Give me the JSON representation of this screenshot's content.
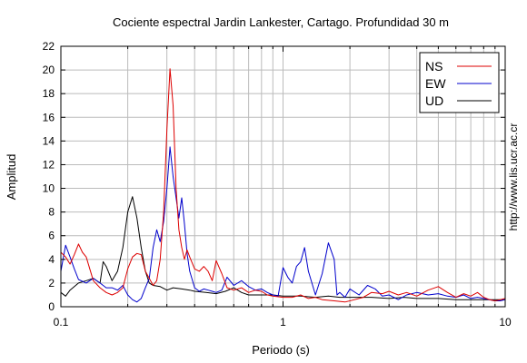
{
  "chart_data": {
    "type": "line",
    "title": "Cociente espectral Jardin Lankester, Cartago. Profundidad 30 m",
    "xlabel": "Periodo (s)",
    "ylabel": "Amplitud",
    "xscale": "log",
    "xlim": [
      0.1,
      10
    ],
    "ylim": [
      0,
      22
    ],
    "xticks": [
      "0.1",
      "1",
      "10"
    ],
    "yticks": [
      "0",
      "2",
      "4",
      "6",
      "8",
      "10",
      "12",
      "14",
      "16",
      "18",
      "20",
      "22"
    ],
    "grid": true,
    "legend_position": "top-right",
    "credit": "http://www.lis.ucr.ac.cr",
    "series": [
      {
        "name": "NS",
        "color": "#dd0000",
        "x": [
          0.1,
          0.105,
          0.11,
          0.115,
          0.12,
          0.125,
          0.13,
          0.14,
          0.15,
          0.16,
          0.17,
          0.18,
          0.19,
          0.2,
          0.21,
          0.22,
          0.23,
          0.24,
          0.25,
          0.26,
          0.27,
          0.28,
          0.29,
          0.3,
          0.31,
          0.32,
          0.33,
          0.34,
          0.35,
          0.36,
          0.37,
          0.38,
          0.4,
          0.42,
          0.44,
          0.46,
          0.48,
          0.5,
          0.53,
          0.56,
          0.6,
          0.65,
          0.7,
          0.75,
          0.8,
          0.85,
          0.9,
          1.0,
          1.1,
          1.2,
          1.3,
          1.4,
          1.5,
          1.7,
          1.9,
          2.1,
          2.3,
          2.5,
          2.8,
          3.0,
          3.3,
          3.6,
          4.0,
          4.5,
          5.0,
          5.5,
          6.0,
          6.5,
          7.0,
          7.5,
          8.0,
          8.5,
          9.0,
          9.5,
          10.0
        ],
        "values": [
          4.6,
          4.2,
          3.6,
          4.4,
          5.3,
          4.6,
          4.2,
          2.2,
          1.6,
          1.2,
          1.0,
          1.2,
          1.6,
          3.2,
          4.2,
          4.5,
          4.4,
          3.0,
          2.4,
          1.8,
          2.2,
          4.0,
          8.0,
          15.0,
          20.1,
          17.0,
          10.0,
          6.5,
          5.0,
          4.0,
          4.8,
          4.2,
          3.2,
          3.0,
          3.4,
          3.0,
          2.2,
          3.9,
          2.8,
          1.6,
          1.4,
          1.6,
          1.2,
          1.4,
          1.3,
          1.0,
          0.9,
          0.8,
          0.8,
          1.0,
          0.7,
          0.8,
          0.6,
          0.5,
          0.4,
          0.6,
          0.8,
          1.2,
          1.1,
          1.3,
          1.0,
          1.2,
          0.9,
          1.4,
          1.7,
          1.2,
          0.8,
          1.1,
          0.9,
          1.2,
          0.8,
          0.6,
          0.5,
          0.6,
          0.7
        ]
      },
      {
        "name": "EW",
        "color": "#0000cc",
        "x": [
          0.1,
          0.105,
          0.11,
          0.115,
          0.12,
          0.13,
          0.14,
          0.15,
          0.16,
          0.17,
          0.18,
          0.19,
          0.2,
          0.21,
          0.22,
          0.23,
          0.24,
          0.25,
          0.26,
          0.27,
          0.28,
          0.29,
          0.3,
          0.31,
          0.32,
          0.33,
          0.34,
          0.35,
          0.36,
          0.37,
          0.38,
          0.4,
          0.42,
          0.44,
          0.46,
          0.48,
          0.5,
          0.53,
          0.56,
          0.6,
          0.65,
          0.7,
          0.75,
          0.8,
          0.85,
          0.9,
          0.95,
          1.0,
          1.05,
          1.1,
          1.15,
          1.2,
          1.25,
          1.3,
          1.4,
          1.5,
          1.6,
          1.7,
          1.75,
          1.8,
          1.9,
          2.0,
          2.2,
          2.4,
          2.6,
          2.8,
          3.0,
          3.3,
          3.6,
          4.0,
          4.5,
          5.0,
          5.5,
          6.0,
          6.5,
          7.0,
          7.5,
          8.0,
          8.5,
          9.0,
          9.5,
          10.0
        ],
        "values": [
          3.0,
          5.2,
          4.2,
          3.2,
          2.3,
          2.0,
          2.4,
          2.0,
          1.6,
          1.6,
          1.4,
          1.8,
          1.0,
          0.6,
          0.4,
          0.7,
          1.6,
          2.4,
          5.0,
          6.5,
          5.5,
          7.2,
          10.0,
          13.5,
          11.0,
          9.2,
          7.5,
          9.2,
          7.0,
          4.5,
          3.0,
          1.6,
          1.3,
          1.5,
          1.4,
          1.3,
          1.2,
          1.4,
          2.5,
          1.8,
          2.2,
          1.7,
          1.4,
          1.5,
          1.2,
          1.0,
          0.9,
          3.3,
          2.5,
          2.0,
          3.4,
          3.8,
          5.0,
          3.0,
          1.0,
          2.8,
          5.4,
          4.0,
          1.0,
          1.2,
          0.8,
          1.5,
          1.0,
          1.8,
          1.5,
          0.9,
          1.0,
          0.6,
          1.0,
          1.2,
          1.0,
          1.1,
          0.9,
          0.8,
          1.0,
          0.7,
          0.8,
          0.7,
          0.6,
          0.5,
          0.5,
          0.6
        ]
      },
      {
        "name": "UD",
        "color": "#000000",
        "x": [
          0.1,
          0.105,
          0.11,
          0.12,
          0.13,
          0.14,
          0.15,
          0.155,
          0.16,
          0.17,
          0.18,
          0.19,
          0.2,
          0.21,
          0.22,
          0.23,
          0.24,
          0.25,
          0.26,
          0.28,
          0.3,
          0.32,
          0.35,
          0.38,
          0.4,
          0.45,
          0.5,
          0.55,
          0.6,
          0.65,
          0.7,
          0.8,
          0.9,
          1.0,
          1.2,
          1.4,
          1.6,
          1.8,
          2.0,
          2.5,
          3.0,
          3.5,
          4.0,
          5.0,
          6.0,
          7.0,
          8.0,
          9.0,
          10.0
        ],
        "values": [
          1.2,
          0.9,
          1.4,
          2.0,
          2.2,
          2.4,
          2.0,
          3.8,
          3.4,
          2.2,
          3.0,
          5.0,
          8.0,
          9.3,
          7.5,
          5.0,
          3.0,
          2.0,
          1.8,
          1.7,
          1.4,
          1.6,
          1.5,
          1.4,
          1.3,
          1.2,
          1.1,
          1.3,
          1.6,
          1.2,
          1.0,
          1.0,
          1.0,
          0.9,
          0.9,
          0.8,
          0.9,
          0.8,
          0.8,
          0.8,
          0.7,
          0.8,
          0.7,
          0.7,
          0.6,
          0.6,
          0.6,
          0.6,
          0.6
        ]
      }
    ]
  }
}
